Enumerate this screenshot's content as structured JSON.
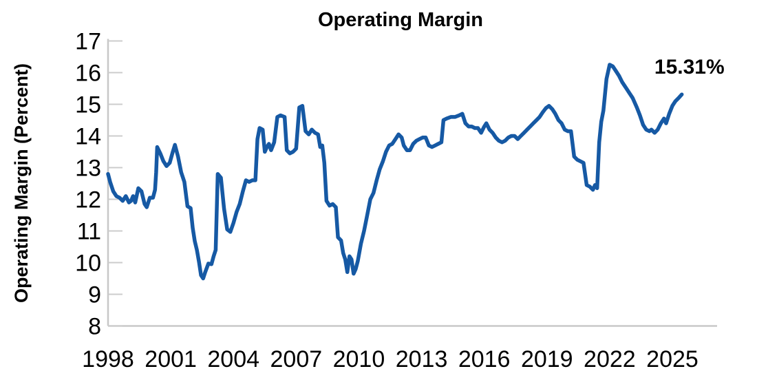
{
  "title": "Operating Margin",
  "colors": {
    "line": "#1659A4",
    "axis": "#C8C8C8",
    "tick": "#CCCCCC",
    "text": "#000000",
    "background": "#FFFFFF"
  },
  "chart_data": {
    "type": "line",
    "title": "Operating Margin",
    "xlabel": "",
    "ylabel": "Operating Margin (Percent)",
    "ylim": [
      8,
      17
    ],
    "xlim": [
      1998,
      2026.5
    ],
    "grid": false,
    "legend": false,
    "y_ticks": [
      8,
      9,
      10,
      11,
      12,
      13,
      14,
      15,
      16,
      17
    ],
    "x_ticks": [
      "1998",
      "2001",
      "2004",
      "2007",
      "2010",
      "2013",
      "2016",
      "2019",
      "2022",
      "2025"
    ],
    "x_tick_years": [
      1998,
      2001,
      2004,
      2007,
      2010,
      2013,
      2016,
      2019,
      2022,
      2025
    ],
    "annotation": {
      "text": "15.31%",
      "x": 2025.45,
      "y": 15.31
    },
    "series": [
      {
        "name": "Operating Margin",
        "color": "#1659A4",
        "points": [
          [
            1998.0,
            12.8
          ],
          [
            1998.1,
            12.55
          ],
          [
            1998.25,
            12.25
          ],
          [
            1998.4,
            12.1
          ],
          [
            1998.55,
            12.05
          ],
          [
            1998.7,
            11.95
          ],
          [
            1998.85,
            12.1
          ],
          [
            1999.0,
            11.9
          ],
          [
            1999.1,
            11.95
          ],
          [
            1999.2,
            12.1
          ],
          [
            1999.3,
            11.9
          ],
          [
            1999.45,
            12.35
          ],
          [
            1999.6,
            12.25
          ],
          [
            1999.75,
            11.85
          ],
          [
            1999.85,
            11.75
          ],
          [
            2000.0,
            12.05
          ],
          [
            2000.15,
            12.05
          ],
          [
            2000.25,
            12.3
          ],
          [
            2000.3,
            12.85
          ],
          [
            2000.35,
            13.65
          ],
          [
            2000.5,
            13.45
          ],
          [
            2000.65,
            13.2
          ],
          [
            2000.8,
            13.05
          ],
          [
            2000.95,
            13.15
          ],
          [
            2001.1,
            13.5
          ],
          [
            2001.2,
            13.72
          ],
          [
            2001.35,
            13.35
          ],
          [
            2001.5,
            12.85
          ],
          [
            2001.65,
            12.55
          ],
          [
            2001.8,
            11.78
          ],
          [
            2001.95,
            11.72
          ],
          [
            2002.05,
            11.1
          ],
          [
            2002.15,
            10.68
          ],
          [
            2002.25,
            10.4
          ],
          [
            2002.35,
            10.03
          ],
          [
            2002.45,
            9.6
          ],
          [
            2002.55,
            9.5
          ],
          [
            2002.65,
            9.7
          ],
          [
            2002.8,
            9.97
          ],
          [
            2002.95,
            9.95
          ],
          [
            2003.05,
            10.2
          ],
          [
            2003.15,
            10.4
          ],
          [
            2003.25,
            12.8
          ],
          [
            2003.4,
            12.68
          ],
          [
            2003.55,
            11.7
          ],
          [
            2003.7,
            11.05
          ],
          [
            2003.85,
            10.97
          ],
          [
            2004.0,
            11.25
          ],
          [
            2004.15,
            11.6
          ],
          [
            2004.3,
            11.85
          ],
          [
            2004.45,
            12.25
          ],
          [
            2004.6,
            12.6
          ],
          [
            2004.75,
            12.55
          ],
          [
            2004.9,
            12.6
          ],
          [
            2005.05,
            12.6
          ],
          [
            2005.15,
            13.9
          ],
          [
            2005.25,
            14.25
          ],
          [
            2005.4,
            14.2
          ],
          [
            2005.5,
            13.5
          ],
          [
            2005.6,
            13.65
          ],
          [
            2005.7,
            13.75
          ],
          [
            2005.8,
            13.55
          ],
          [
            2005.95,
            13.8
          ],
          [
            2006.1,
            14.6
          ],
          [
            2006.25,
            14.65
          ],
          [
            2006.45,
            14.6
          ],
          [
            2006.55,
            13.55
          ],
          [
            2006.7,
            13.45
          ],
          [
            2006.85,
            13.5
          ],
          [
            2007.0,
            13.6
          ],
          [
            2007.15,
            14.9
          ],
          [
            2007.3,
            14.95
          ],
          [
            2007.45,
            14.15
          ],
          [
            2007.6,
            14.05
          ],
          [
            2007.75,
            14.2
          ],
          [
            2007.9,
            14.1
          ],
          [
            2008.05,
            14.05
          ],
          [
            2008.15,
            13.65
          ],
          [
            2008.25,
            13.7
          ],
          [
            2008.35,
            13.15
          ],
          [
            2008.45,
            11.95
          ],
          [
            2008.6,
            11.8
          ],
          [
            2008.75,
            11.85
          ],
          [
            2008.9,
            11.75
          ],
          [
            2009.0,
            10.8
          ],
          [
            2009.15,
            10.7
          ],
          [
            2009.25,
            10.3
          ],
          [
            2009.35,
            10.1
          ],
          [
            2009.45,
            9.7
          ],
          [
            2009.55,
            10.2
          ],
          [
            2009.65,
            10.1
          ],
          [
            2009.75,
            9.65
          ],
          [
            2009.85,
            9.8
          ],
          [
            2009.95,
            10.05
          ],
          [
            2010.1,
            10.6
          ],
          [
            2010.25,
            11.0
          ],
          [
            2010.4,
            11.5
          ],
          [
            2010.55,
            12.0
          ],
          [
            2010.7,
            12.2
          ],
          [
            2010.85,
            12.6
          ],
          [
            2011.0,
            12.95
          ],
          [
            2011.15,
            13.2
          ],
          [
            2011.3,
            13.5
          ],
          [
            2011.45,
            13.7
          ],
          [
            2011.6,
            13.75
          ],
          [
            2011.75,
            13.9
          ],
          [
            2011.9,
            14.05
          ],
          [
            2012.05,
            13.95
          ],
          [
            2012.15,
            13.7
          ],
          [
            2012.3,
            13.55
          ],
          [
            2012.45,
            13.55
          ],
          [
            2012.6,
            13.75
          ],
          [
            2012.75,
            13.85
          ],
          [
            2012.9,
            13.9
          ],
          [
            2013.05,
            13.95
          ],
          [
            2013.2,
            13.95
          ],
          [
            2013.35,
            13.7
          ],
          [
            2013.5,
            13.65
          ],
          [
            2013.65,
            13.7
          ],
          [
            2013.8,
            13.75
          ],
          [
            2013.95,
            13.8
          ],
          [
            2014.05,
            14.5
          ],
          [
            2014.2,
            14.55
          ],
          [
            2014.4,
            14.6
          ],
          [
            2014.6,
            14.6
          ],
          [
            2014.8,
            14.65
          ],
          [
            2014.95,
            14.7
          ],
          [
            2015.1,
            14.4
          ],
          [
            2015.25,
            14.3
          ],
          [
            2015.4,
            14.3
          ],
          [
            2015.55,
            14.25
          ],
          [
            2015.7,
            14.25
          ],
          [
            2015.85,
            14.1
          ],
          [
            2016.0,
            14.3
          ],
          [
            2016.1,
            14.4
          ],
          [
            2016.25,
            14.2
          ],
          [
            2016.4,
            14.1
          ],
          [
            2016.55,
            13.95
          ],
          [
            2016.7,
            13.85
          ],
          [
            2016.85,
            13.8
          ],
          [
            2017.0,
            13.85
          ],
          [
            2017.15,
            13.95
          ],
          [
            2017.3,
            14.0
          ],
          [
            2017.45,
            14.0
          ],
          [
            2017.6,
            13.9
          ],
          [
            2017.75,
            14.0
          ],
          [
            2017.9,
            14.1
          ],
          [
            2018.05,
            14.2
          ],
          [
            2018.2,
            14.3
          ],
          [
            2018.35,
            14.4
          ],
          [
            2018.5,
            14.5
          ],
          [
            2018.65,
            14.6
          ],
          [
            2018.8,
            14.75
          ],
          [
            2018.95,
            14.88
          ],
          [
            2019.1,
            14.95
          ],
          [
            2019.25,
            14.85
          ],
          [
            2019.4,
            14.7
          ],
          [
            2019.55,
            14.5
          ],
          [
            2019.7,
            14.4
          ],
          [
            2019.85,
            14.2
          ],
          [
            2020.0,
            14.15
          ],
          [
            2020.15,
            14.15
          ],
          [
            2020.3,
            13.35
          ],
          [
            2020.45,
            13.25
          ],
          [
            2020.6,
            13.2
          ],
          [
            2020.75,
            13.15
          ],
          [
            2020.9,
            12.45
          ],
          [
            2021.05,
            12.4
          ],
          [
            2021.2,
            12.3
          ],
          [
            2021.3,
            12.45
          ],
          [
            2021.4,
            12.35
          ],
          [
            2021.5,
            13.8
          ],
          [
            2021.6,
            14.45
          ],
          [
            2021.7,
            14.8
          ],
          [
            2021.85,
            15.8
          ],
          [
            2022.0,
            16.25
          ],
          [
            2022.15,
            16.2
          ],
          [
            2022.3,
            16.05
          ],
          [
            2022.45,
            15.9
          ],
          [
            2022.6,
            15.7
          ],
          [
            2022.8,
            15.5
          ],
          [
            2022.95,
            15.35
          ],
          [
            2023.1,
            15.2
          ],
          [
            2023.3,
            14.9
          ],
          [
            2023.45,
            14.65
          ],
          [
            2023.6,
            14.35
          ],
          [
            2023.75,
            14.2
          ],
          [
            2023.9,
            14.15
          ],
          [
            2024.0,
            14.2
          ],
          [
            2024.15,
            14.1
          ],
          [
            2024.3,
            14.2
          ],
          [
            2024.45,
            14.4
          ],
          [
            2024.6,
            14.55
          ],
          [
            2024.7,
            14.4
          ],
          [
            2024.85,
            14.7
          ],
          [
            2025.0,
            14.95
          ],
          [
            2025.15,
            15.1
          ],
          [
            2025.3,
            15.2
          ],
          [
            2025.45,
            15.31
          ]
        ]
      }
    ]
  }
}
